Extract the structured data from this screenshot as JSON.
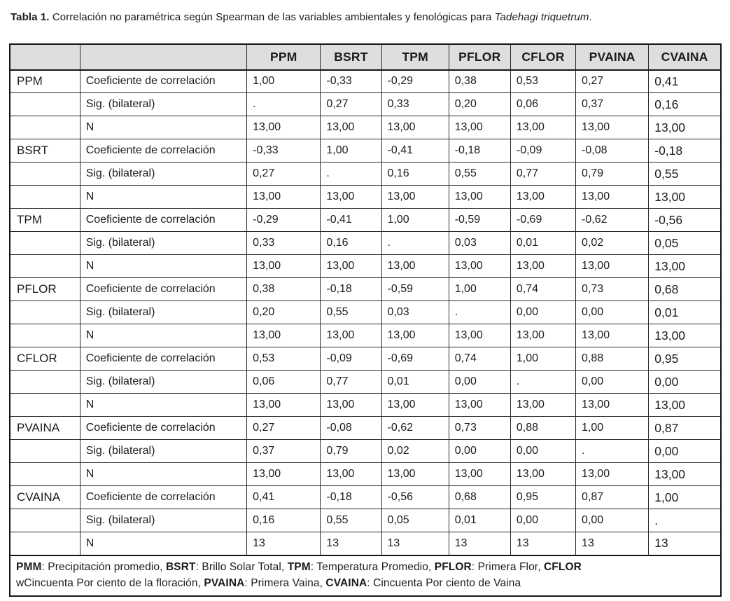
{
  "caption": {
    "label": "Tabla 1.",
    "body": " Correlación no paramétrica según Spearman de las variables ambientales y fenológicas para ",
    "species": "Tadehagi triquetrum",
    "suffix": "."
  },
  "table": {
    "column_headers": [
      "",
      "",
      "PPM",
      "BSRT",
      "TPM",
      "PFLOR",
      "CFLOR",
      "PVAINA",
      "CVAINA"
    ],
    "row_labels": {
      "coef": "Coeficiente de correlación",
      "sig": "Sig. (bilateral)",
      "n": "N"
    },
    "groups": [
      {
        "name": "PPM",
        "coef": [
          "1,00",
          "-0,33",
          "-0,29",
          "0,38",
          "0,53",
          "0,27",
          "0,41"
        ],
        "sig": [
          ".",
          "0,27",
          "0,33",
          "0,20",
          "0,06",
          "0,37",
          "0,16"
        ],
        "n": [
          "13,00",
          "13,00",
          "13,00",
          "13,00",
          "13,00",
          "13,00",
          "13,00"
        ]
      },
      {
        "name": "BSRT",
        "coef": [
          "-0,33",
          "1,00",
          "-0,41",
          "-0,18",
          "-0,09",
          "-0,08",
          "-0,18"
        ],
        "sig": [
          "0,27",
          ".",
          "0,16",
          "0,55",
          "0,77",
          "0,79",
          "0,55"
        ],
        "n": [
          "13,00",
          "13,00",
          "13,00",
          "13,00",
          "13,00",
          "13,00",
          "13,00"
        ]
      },
      {
        "name": "TPM",
        "coef": [
          "-0,29",
          "-0,41",
          "1,00",
          "-0,59",
          "-0,69",
          "-0,62",
          "-0,56"
        ],
        "sig": [
          "0,33",
          "0,16",
          ".",
          "0,03",
          "0,01",
          "0,02",
          "0,05"
        ],
        "n": [
          "13,00",
          "13,00",
          "13,00",
          "13,00",
          "13,00",
          "13,00",
          "13,00"
        ]
      },
      {
        "name": "PFLOR",
        "coef": [
          "0,38",
          "-0,18",
          "-0,59",
          "1,00",
          "0,74",
          "0,73",
          "0,68"
        ],
        "sig": [
          "0,20",
          "0,55",
          "0,03",
          ".",
          "0,00",
          "0,00",
          "0,01"
        ],
        "n": [
          "13,00",
          "13,00",
          "13,00",
          "13,00",
          "13,00",
          "13,00",
          "13,00"
        ]
      },
      {
        "name": "CFLOR",
        "coef": [
          "0,53",
          "-0,09",
          "-0,69",
          "0,74",
          "1,00",
          "0,88",
          "0,95"
        ],
        "sig": [
          "0,06",
          "0,77",
          "0,01",
          "0,00",
          ".",
          "0,00",
          "0,00"
        ],
        "n": [
          "13,00",
          "13,00",
          "13,00",
          "13,00",
          "13,00",
          "13,00",
          "13,00"
        ]
      },
      {
        "name": "PVAINA",
        "coef": [
          "0,27",
          "-0,08",
          "-0,62",
          "0,73",
          "0,88",
          "1,00",
          "0,87"
        ],
        "sig": [
          "0,37",
          "0,79",
          "0,02",
          "0,00",
          "0,00",
          ".",
          "0,00"
        ],
        "n": [
          "13,00",
          "13,00",
          "13,00",
          "13,00",
          "13,00",
          "13,00",
          "13,00"
        ]
      },
      {
        "name": "CVAINA",
        "coef": [
          "0,41",
          "-0,18",
          "-0,56",
          "0,68",
          "0,95",
          "0,87",
          "1,00"
        ],
        "sig": [
          "0,16",
          "0,55",
          "0,05",
          "0,01",
          "0,00",
          "0,00",
          "."
        ],
        "n": [
          "13",
          "13",
          "13",
          "13",
          "13",
          "13",
          "13"
        ]
      }
    ]
  },
  "footnote": {
    "lines": [
      [
        {
          "term": "PMM",
          "text": ": Precipitación promedio, "
        },
        {
          "term": "BSRT",
          "text": ": Brillo Solar Total, "
        },
        {
          "term": "TPM",
          "text": ": Temperatura Promedio, "
        },
        {
          "term": "PFLOR",
          "text": ": Primera Flor, "
        },
        {
          "term": "CFLOR",
          "text": ""
        }
      ],
      [
        {
          "term": "",
          "text": "wCincuenta Por ciento de la floración, "
        },
        {
          "term": "PVAINA",
          "text": ": Primera Vaina, "
        },
        {
          "term": "CVAINA",
          "text": ": Cincuenta Por ciento de Vaina"
        }
      ]
    ]
  }
}
